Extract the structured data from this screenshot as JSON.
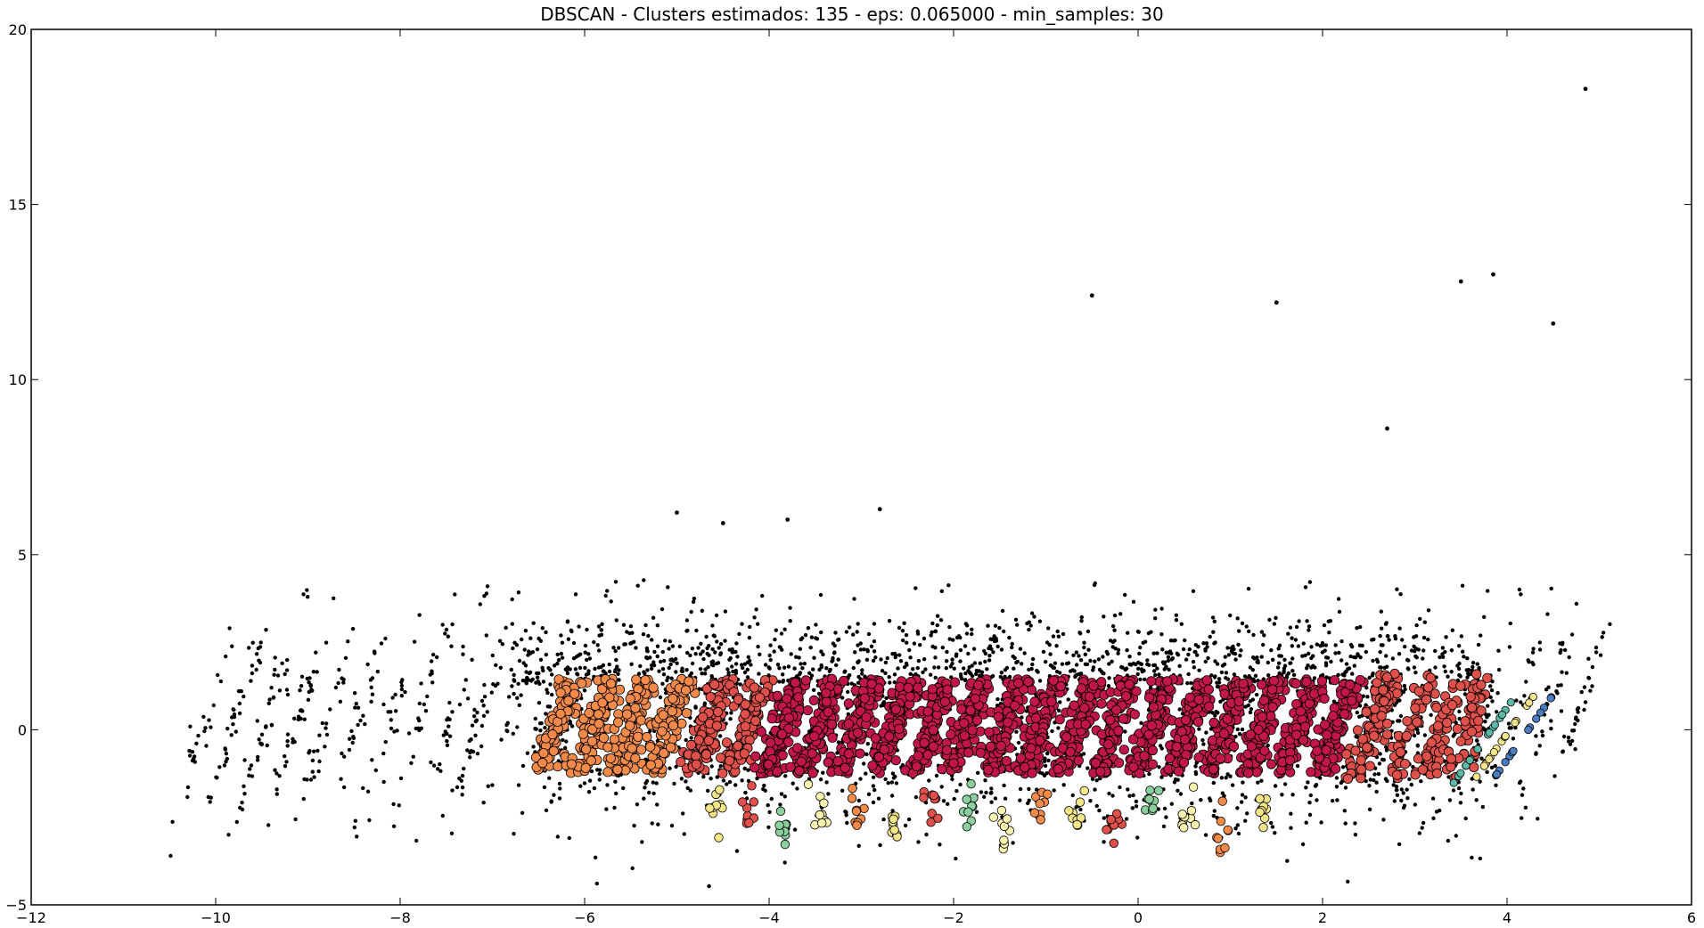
{
  "chart_data": {
    "type": "scatter",
    "title": "DBSCAN - Clusters estimados: 135 - eps: 0.065000 - min_samples: 30",
    "xlabel": "",
    "ylabel": "",
    "xlim": [
      -12,
      6
    ],
    "ylim": [
      -5,
      20
    ],
    "x_ticks": [
      "−12",
      "−10",
      "−8",
      "−6",
      "−4",
      "−2",
      "0",
      "2",
      "4",
      "6"
    ],
    "y_ticks": [
      "−5",
      "0",
      "5",
      "10",
      "15",
      "20"
    ],
    "grid": false,
    "colors": {
      "noise": "#000000",
      "main_cluster": "#c2164a",
      "secondary": "#e0504a",
      "orange": "#f48a4a",
      "yellow": "#f5e68a",
      "pale_yellow": "#fbf3b0",
      "green": "#8ccf9e",
      "teal": "#5cb8a8",
      "blue": "#4a7cc0"
    },
    "stripes_x": [
      -6.3,
      -5.9,
      -5.5,
      -5.1,
      -4.65,
      -4.25,
      -3.85,
      -3.45,
      -3.05,
      -2.65,
      -2.25,
      -1.85,
      -1.45,
      -1.05,
      -0.65,
      -0.25,
      0.15,
      0.55,
      0.95,
      1.35,
      1.75,
      2.15,
      2.55,
      2.95,
      3.3,
      3.6
    ],
    "lower_clusters_x": [
      -4.6,
      -4.25,
      -3.85,
      -3.45,
      -3.05,
      -2.65,
      -2.25,
      -1.85,
      -1.45,
      -1.05,
      -0.65,
      -0.25,
      0.15,
      0.55,
      0.95,
      1.35
    ],
    "outliers": [
      [
        4.85,
        18.3
      ],
      [
        3.85,
        13.0
      ],
      [
        3.5,
        12.8
      ],
      [
        1.5,
        12.2
      ],
      [
        -0.5,
        12.4
      ],
      [
        4.5,
        11.6
      ],
      [
        2.7,
        8.6
      ],
      [
        -2.8,
        6.3
      ],
      [
        -5.0,
        6.2
      ],
      [
        -3.8,
        6.0
      ],
      [
        -4.5,
        5.9
      ]
    ]
  }
}
